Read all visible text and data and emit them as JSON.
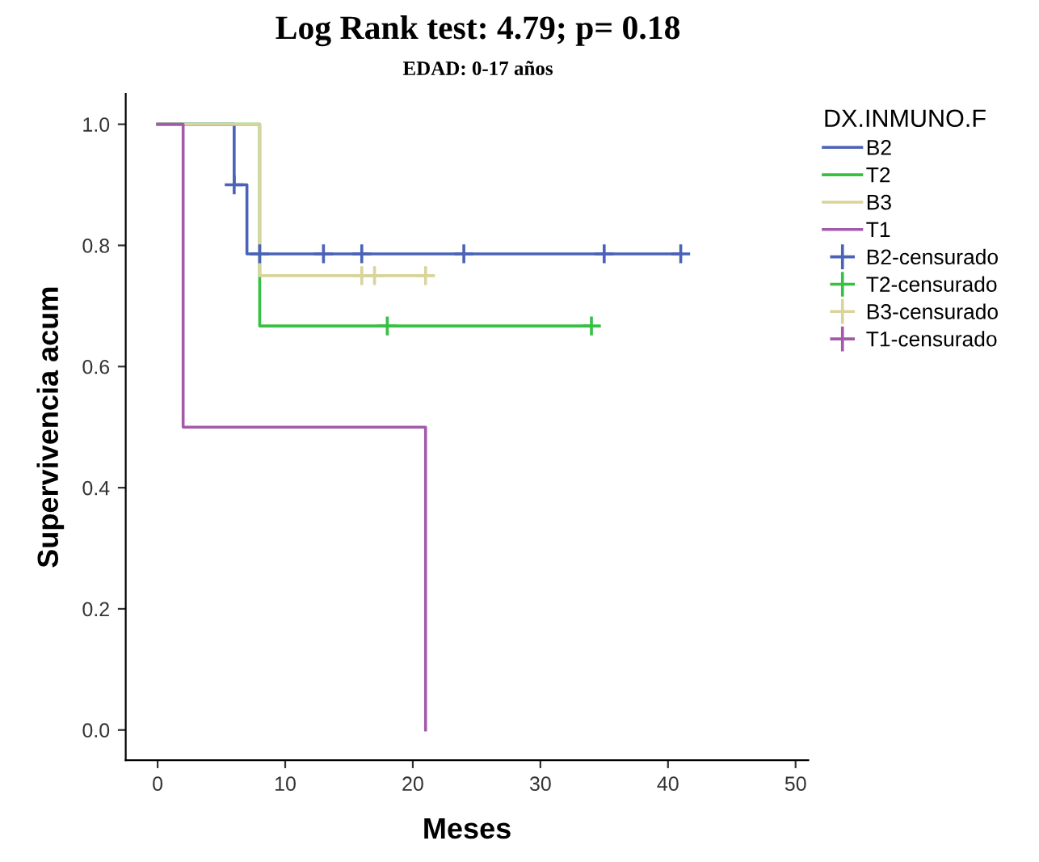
{
  "chart_data": {
    "type": "step",
    "title": "Log Rank test: 4.79; p= 0.18",
    "subtitle": "EDAD: 0-17 años",
    "xlabel": "Meses",
    "ylabel": "Supervivencia acum",
    "legend_title": "DX.INMUNO.F",
    "legend": "right",
    "grid": false,
    "series": [
      {
        "name": "B2",
        "color": "#4a63b8",
        "x": [
          0,
          6,
          7,
          41
        ],
        "values": [
          1,
          0.9,
          0.786,
          0.786
        ]
      },
      {
        "name": "T2",
        "color": "#37c043",
        "x": [
          0,
          8,
          34
        ],
        "values": [
          1,
          0.667,
          0.667
        ]
      },
      {
        "name": "B3",
        "color": "#d9d49b",
        "x": [
          0,
          8,
          21
        ],
        "values": [
          1,
          0.75,
          0.75
        ]
      },
      {
        "name": "T1",
        "color": "#a25aa9",
        "x": [
          0,
          2,
          21
        ],
        "values": [
          1,
          0.5,
          0
        ]
      },
      {
        "name": "B2-censurado",
        "type": "scatter",
        "marker": "cross",
        "color": "#4a63b8",
        "x": [
          6,
          8,
          13,
          16,
          24,
          35,
          41
        ],
        "values": [
          0.9,
          0.786,
          0.786,
          0.786,
          0.786,
          0.786,
          0.786
        ]
      },
      {
        "name": "T2-censurado",
        "type": "scatter",
        "marker": "cross",
        "color": "#37c043",
        "x": [
          18,
          34
        ],
        "values": [
          0.667,
          0.667
        ]
      },
      {
        "name": "B3-censurado",
        "type": "scatter",
        "marker": "cross",
        "color": "#d9d49b",
        "x": [
          16,
          17,
          21
        ],
        "values": [
          0.75,
          0.75,
          0.75
        ]
      },
      {
        "name": "T1-censurado",
        "type": "scatter",
        "marker": "cross",
        "color": "#a25aa9"
      }
    ],
    "xlim": [
      -2.5,
      51
    ],
    "xticks": [
      0,
      10,
      20,
      30,
      40,
      50
    ],
    "ylim": [
      -0.05,
      1.05
    ],
    "yticks": [
      {
        "value": 0,
        "label": "0.0"
      },
      {
        "value": 0.2,
        "label": "0.2"
      },
      {
        "value": 0.4,
        "label": "0.4"
      },
      {
        "value": 0.6,
        "label": "0.6"
      },
      {
        "value": 0.8,
        "label": "0.8"
      },
      {
        "value": 1,
        "label": "1.0"
      }
    ]
  }
}
